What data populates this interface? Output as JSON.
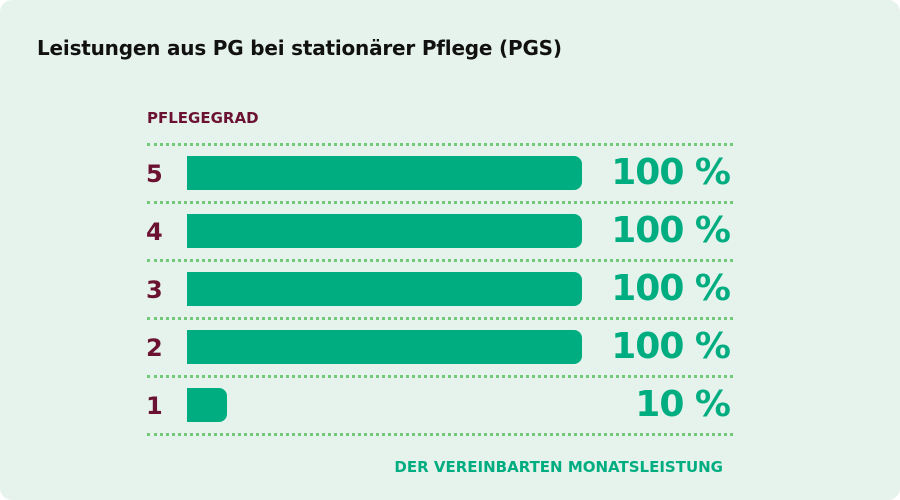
{
  "chart_data": {
    "type": "bar",
    "orientation": "horizontal",
    "title": "Leistungen aus PG bei stationärer Pflege (PGS)",
    "ylabel": "PFLEGEGRAD",
    "xlabel": "DER VEREINBARTEN MONATSLEISTUNG",
    "categories": [
      "5",
      "4",
      "3",
      "2",
      "1"
    ],
    "values": [
      100,
      100,
      100,
      100,
      10
    ],
    "value_labels": [
      "100 %",
      "100 %",
      "100 %",
      "100 %",
      "10 %"
    ],
    "xlim": [
      0,
      100
    ],
    "colors": {
      "bar": "#00ad80",
      "category": "#6b1233",
      "separator": "#72c97a",
      "background": "#e6f3ec"
    }
  }
}
